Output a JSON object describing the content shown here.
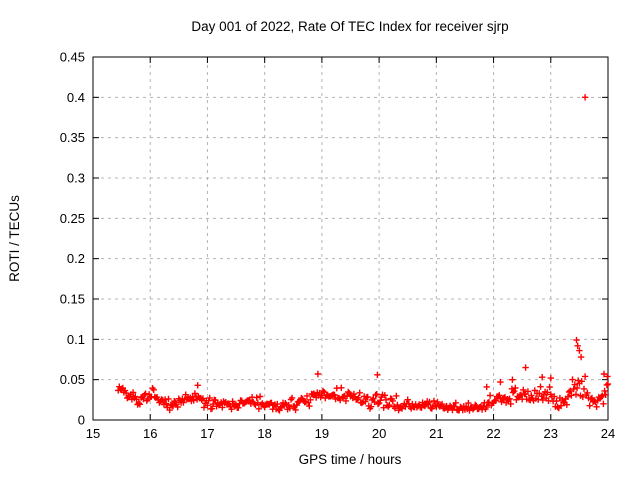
{
  "chart_data": {
    "type": "scatter",
    "title": "Day 001 of 2022, Rate Of TEC Index for receiver sjrp",
    "xlabel": "GPS time / hours",
    "ylabel": "ROTI / TECUs",
    "xlim": [
      15,
      24
    ],
    "ylim": [
      0,
      0.45
    ],
    "xticks": [
      15,
      16,
      17,
      18,
      19,
      20,
      21,
      22,
      23,
      24
    ],
    "xtick_labels": [
      "15",
      "16",
      "17",
      "18",
      "19",
      "20",
      "21",
      "22",
      "23",
      "24"
    ],
    "yticks": [
      0,
      0.05,
      0.1,
      0.15,
      0.2,
      0.25,
      0.3,
      0.35,
      0.4,
      0.45
    ],
    "ytick_labels": [
      "0",
      "0.05",
      "0.1",
      "0.15",
      "0.2",
      "0.25",
      "0.3",
      "0.35",
      "0.4",
      "0.45"
    ],
    "grid": "dashed",
    "legend": "none",
    "marker": "plus",
    "marker_color": "#ff0000",
    "grid_color": "#b4b4b4",
    "border_color": "#000000",
    "background_color": "#ffffff",
    "x_start": 15.44,
    "x_end": 24.0,
    "sampling_interval_hours": 0.02,
    "band_profile_t_mean_halfspread": [
      [
        15.44,
        0.041,
        0.004
      ],
      [
        15.52,
        0.038,
        0.005
      ],
      [
        15.65,
        0.027,
        0.007
      ],
      [
        15.85,
        0.024,
        0.007
      ],
      [
        16.05,
        0.027,
        0.007
      ],
      [
        16.35,
        0.018,
        0.006
      ],
      [
        16.55,
        0.023,
        0.007
      ],
      [
        16.8,
        0.027,
        0.009
      ],
      [
        17.0,
        0.02,
        0.007
      ],
      [
        17.25,
        0.022,
        0.007
      ],
      [
        17.55,
        0.019,
        0.006
      ],
      [
        17.75,
        0.023,
        0.008
      ],
      [
        18.0,
        0.018,
        0.006
      ],
      [
        18.3,
        0.017,
        0.006
      ],
      [
        18.6,
        0.021,
        0.007
      ],
      [
        18.9,
        0.029,
        0.009
      ],
      [
        19.1,
        0.03,
        0.012
      ],
      [
        19.35,
        0.031,
        0.013
      ],
      [
        19.55,
        0.028,
        0.011
      ],
      [
        19.8,
        0.022,
        0.008
      ],
      [
        20.0,
        0.025,
        0.008
      ],
      [
        20.25,
        0.021,
        0.007
      ],
      [
        20.5,
        0.015,
        0.006
      ],
      [
        20.75,
        0.019,
        0.007
      ],
      [
        20.9,
        0.021,
        0.007
      ],
      [
        21.1,
        0.015,
        0.005
      ],
      [
        21.4,
        0.014,
        0.005
      ],
      [
        21.7,
        0.016,
        0.006
      ],
      [
        21.95,
        0.018,
        0.007
      ],
      [
        22.1,
        0.027,
        0.011
      ],
      [
        22.35,
        0.026,
        0.011
      ],
      [
        22.56,
        0.033,
        0.013
      ],
      [
        22.68,
        0.024,
        0.01
      ],
      [
        22.82,
        0.037,
        0.011
      ],
      [
        23.0,
        0.03,
        0.012
      ],
      [
        23.15,
        0.021,
        0.008
      ],
      [
        23.3,
        0.026,
        0.011
      ],
      [
        23.48,
        0.05,
        0.026
      ],
      [
        23.58,
        0.038,
        0.018
      ],
      [
        23.68,
        0.024,
        0.01
      ],
      [
        23.82,
        0.022,
        0.009
      ],
      [
        23.92,
        0.028,
        0.011
      ],
      [
        23.97,
        0.044,
        0.011
      ],
      [
        24.0,
        0.047,
        0.008
      ]
    ],
    "outliers": [
      [
        23.6,
        0.4
      ],
      [
        18.93,
        0.057
      ],
      [
        19.97,
        0.056
      ],
      [
        22.56,
        0.065
      ],
      [
        22.33,
        0.05
      ],
      [
        22.12,
        0.047
      ],
      [
        22.85,
        0.053
      ],
      [
        23.0,
        0.052
      ],
      [
        23.45,
        0.099
      ],
      [
        23.47,
        0.092
      ],
      [
        23.5,
        0.086
      ],
      [
        23.53,
        0.078
      ],
      [
        23.93,
        0.057
      ],
      [
        23.99,
        0.054
      ],
      [
        16.83,
        0.043
      ],
      [
        21.88,
        0.041
      ]
    ]
  }
}
